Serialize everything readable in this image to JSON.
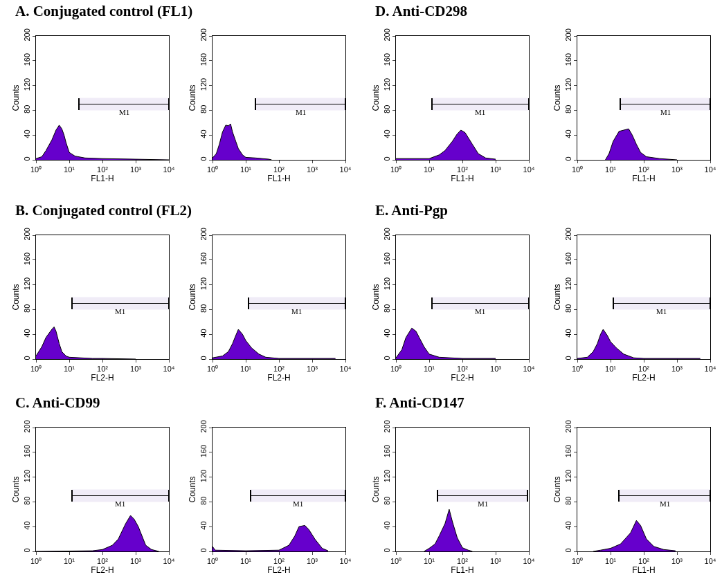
{
  "chart_data": [
    {
      "type": "area",
      "title": "A. Conjugated control (FL1)",
      "xlabel": "FL1-H",
      "ylabel": "Counts",
      "log": "x",
      "color": "#6600cc",
      "xlim": [
        1,
        10000
      ],
      "xticks": [
        {
          "value": 1,
          "label": "10⁰"
        },
        {
          "value": 10,
          "label": "10¹"
        },
        {
          "value": 100,
          "label": "10²"
        },
        {
          "value": 1000,
          "label": "10³"
        },
        {
          "value": 10000,
          "label": "10⁴"
        }
      ],
      "ylim": [
        0,
        200
      ],
      "yticks": [
        0,
        40,
        80,
        120,
        160,
        200
      ],
      "x": [
        1,
        1.5,
        2,
        3,
        4,
        5,
        6,
        7,
        8,
        10,
        15,
        30,
        100,
        1000,
        10000
      ],
      "values": [
        2,
        5,
        15,
        32,
        48,
        56,
        50,
        40,
        28,
        12,
        6,
        3,
        2,
        1,
        0
      ],
      "bands": [
        {
          "axis": "x",
          "from": 20,
          "to": 10000,
          "label": "M1"
        }
      ]
    },
    {
      "type": "area",
      "xlabel": "FL1-H",
      "ylabel": "Counts",
      "log": "x",
      "color": "#6600cc",
      "xlim": [
        1,
        10000
      ],
      "xticks": [
        {
          "value": 1,
          "label": "10⁰"
        },
        {
          "value": 10,
          "label": "10¹"
        },
        {
          "value": 100,
          "label": "10²"
        },
        {
          "value": 1000,
          "label": "10³"
        },
        {
          "value": 10000,
          "label": "10⁴"
        }
      ],
      "ylim": [
        0,
        200
      ],
      "yticks": [
        0,
        40,
        80,
        120,
        160,
        200
      ],
      "x": [
        1,
        1.3,
        1.6,
        2,
        2.5,
        3,
        3.5,
        4,
        5,
        6,
        8,
        10,
        20,
        50,
        60
      ],
      "values": [
        3,
        10,
        25,
        45,
        56,
        55,
        58,
        45,
        30,
        18,
        8,
        4,
        3,
        1,
        0
      ],
      "bands": [
        {
          "axis": "x",
          "from": 20,
          "to": 10000,
          "label": "M1"
        }
      ]
    },
    {
      "type": "area",
      "title": "D. Anti-CD298",
      "xlabel": "FL1-H",
      "ylabel": "Counts",
      "log": "x",
      "color": "#6600cc",
      "xlim": [
        1,
        10000
      ],
      "xticks": [
        {
          "value": 1,
          "label": "10⁰"
        },
        {
          "value": 10,
          "label": "10¹"
        },
        {
          "value": 100,
          "label": "10²"
        },
        {
          "value": 1000,
          "label": "10³"
        },
        {
          "value": 10000,
          "label": "10⁴"
        }
      ],
      "ylim": [
        0,
        200
      ],
      "yticks": [
        0,
        40,
        80,
        120,
        160,
        200
      ],
      "x": [
        1,
        10,
        20,
        30,
        50,
        70,
        90,
        120,
        200,
        300,
        500,
        1000
      ],
      "values": [
        2,
        2,
        8,
        15,
        30,
        42,
        48,
        44,
        25,
        10,
        3,
        1
      ],
      "bands": [
        {
          "axis": "x",
          "from": 12,
          "to": 10000,
          "label": "M1"
        }
      ]
    },
    {
      "type": "area",
      "xlabel": "FL1-H",
      "ylabel": "Counts",
      "log": "x",
      "color": "#6600cc",
      "xlim": [
        1,
        10000
      ],
      "xticks": [
        {
          "value": 1,
          "label": "10⁰"
        },
        {
          "value": 10,
          "label": "10¹"
        },
        {
          "value": 100,
          "label": "10²"
        },
        {
          "value": 1000,
          "label": "10³"
        },
        {
          "value": 10000,
          "label": "10⁴"
        }
      ],
      "ylim": [
        0,
        200
      ],
      "yticks": [
        0,
        40,
        80,
        120,
        160,
        200
      ],
      "x": [
        7,
        9,
        12,
        18,
        25,
        35,
        45,
        60,
        80,
        120,
        300,
        1000
      ],
      "values": [
        0,
        10,
        30,
        46,
        48,
        50,
        40,
        25,
        12,
        5,
        2,
        0
      ],
      "bands": [
        {
          "axis": "x",
          "from": 20,
          "to": 10000,
          "label": "M1"
        }
      ]
    },
    {
      "type": "area",
      "title": "B. Conjugated control (FL2)",
      "xlabel": "FL2-H",
      "ylabel": "Counts",
      "log": "x",
      "color": "#6600cc",
      "xlim": [
        1,
        10000
      ],
      "xticks": [
        {
          "value": 1,
          "label": "10⁰"
        },
        {
          "value": 10,
          "label": "10¹"
        },
        {
          "value": 100,
          "label": "10²"
        },
        {
          "value": 1000,
          "label": "10³"
        },
        {
          "value": 10000,
          "label": "10⁴"
        }
      ],
      "ylim": [
        0,
        200
      ],
      "yticks": [
        0,
        40,
        80,
        120,
        160,
        200
      ],
      "x": [
        1,
        1.5,
        2,
        3,
        3.5,
        4,
        5,
        6,
        8,
        10,
        50,
        100,
        1000
      ],
      "values": [
        5,
        20,
        35,
        48,
        52,
        45,
        25,
        12,
        5,
        3,
        1,
        1,
        0
      ],
      "bands": [
        {
          "axis": "x",
          "from": 12,
          "to": 10000,
          "label": "M1"
        }
      ]
    },
    {
      "type": "area",
      "xlabel": "FL2-H",
      "ylabel": "Counts",
      "log": "x",
      "color": "#6600cc",
      "xlim": [
        1,
        10000
      ],
      "xticks": [
        {
          "value": 1,
          "label": "10⁰"
        },
        {
          "value": 10,
          "label": "10¹"
        },
        {
          "value": 100,
          "label": "10²"
        },
        {
          "value": 1000,
          "label": "10³"
        },
        {
          "value": 10000,
          "label": "10⁴"
        }
      ],
      "ylim": [
        0,
        200
      ],
      "yticks": [
        0,
        40,
        80,
        120,
        160,
        200
      ],
      "x": [
        1,
        2,
        3,
        4,
        5,
        6,
        8,
        10,
        15,
        25,
        40,
        100,
        1000,
        5000
      ],
      "values": [
        2,
        5,
        12,
        25,
        38,
        48,
        40,
        30,
        18,
        8,
        3,
        1,
        1,
        1
      ],
      "bands": [
        {
          "axis": "x",
          "from": 12,
          "to": 10000,
          "label": "M1"
        }
      ]
    },
    {
      "type": "area",
      "title": "E. Anti-Pgp",
      "xlabel": "FL2-H",
      "ylabel": "Counts",
      "log": "x",
      "color": "#6600cc",
      "xlim": [
        1,
        10000
      ],
      "xticks": [
        {
          "value": 1,
          "label": "10⁰"
        },
        {
          "value": 10,
          "label": "10¹"
        },
        {
          "value": 100,
          "label": "10²"
        },
        {
          "value": 1000,
          "label": "10³"
        },
        {
          "value": 10000,
          "label": "10⁴"
        }
      ],
      "ylim": [
        0,
        200
      ],
      "yticks": [
        0,
        40,
        80,
        120,
        160,
        200
      ],
      "x": [
        1,
        1.5,
        2,
        3,
        4,
        5,
        7,
        10,
        20,
        100,
        1000
      ],
      "values": [
        2,
        15,
        35,
        50,
        45,
        35,
        20,
        8,
        3,
        1,
        1
      ],
      "bands": [
        {
          "axis": "x",
          "from": 12,
          "to": 10000,
          "label": "M1"
        }
      ]
    },
    {
      "type": "area",
      "xlabel": "FL2-H",
      "ylabel": "Counts",
      "log": "x",
      "color": "#6600cc",
      "xlim": [
        1,
        10000
      ],
      "xticks": [
        {
          "value": 1,
          "label": "10⁰"
        },
        {
          "value": 10,
          "label": "10¹"
        },
        {
          "value": 100,
          "label": "10²"
        },
        {
          "value": 1000,
          "label": "10³"
        },
        {
          "value": 10000,
          "label": "10⁴"
        }
      ],
      "ylim": [
        0,
        200
      ],
      "yticks": [
        0,
        40,
        80,
        120,
        160,
        200
      ],
      "x": [
        1,
        2,
        3,
        4,
        5,
        6,
        8,
        10,
        15,
        25,
        50,
        100,
        1000,
        5000
      ],
      "values": [
        1,
        3,
        12,
        25,
        40,
        48,
        38,
        28,
        18,
        8,
        2,
        1,
        1,
        1
      ],
      "bands": [
        {
          "axis": "x",
          "from": 12,
          "to": 10000,
          "label": "M1"
        }
      ]
    },
    {
      "type": "area",
      "title": "C. Anti-CD99",
      "xlabel": "FL2-H",
      "ylabel": "Counts",
      "log": "x",
      "color": "#6600cc",
      "xlim": [
        1,
        10000
      ],
      "xticks": [
        {
          "value": 1,
          "label": "10⁰"
        },
        {
          "value": 10,
          "label": "10¹"
        },
        {
          "value": 100,
          "label": "10²"
        },
        {
          "value": 1000,
          "label": "10³"
        },
        {
          "value": 10000,
          "label": "10⁴"
        }
      ],
      "ylim": [
        0,
        200
      ],
      "yticks": [
        0,
        40,
        80,
        120,
        160,
        200
      ],
      "x": [
        1,
        50,
        100,
        200,
        300,
        500,
        700,
        900,
        1200,
        2000,
        3000,
        5000
      ],
      "values": [
        0,
        1,
        3,
        10,
        20,
        45,
        58,
        52,
        40,
        10,
        3,
        0
      ],
      "bands": [
        {
          "axis": "x",
          "from": 12,
          "to": 10000,
          "label": "M1"
        }
      ]
    },
    {
      "type": "area",
      "xlabel": "FL2-H",
      "ylabel": "Counts",
      "log": "x",
      "color": "#6600cc",
      "xlim": [
        1,
        10000
      ],
      "xticks": [
        {
          "value": 1,
          "label": "10⁰"
        },
        {
          "value": 10,
          "label": "10¹"
        },
        {
          "value": 100,
          "label": "10²"
        },
        {
          "value": 1000,
          "label": "10³"
        },
        {
          "value": 10000,
          "label": "10⁴"
        }
      ],
      "ylim": [
        0,
        200
      ],
      "yticks": [
        0,
        40,
        80,
        120,
        160,
        200
      ],
      "x": [
        1,
        1.2,
        10,
        100,
        200,
        300,
        400,
        600,
        800,
        1200,
        2000,
        3000
      ],
      "values": [
        8,
        2,
        1,
        2,
        10,
        25,
        40,
        42,
        35,
        20,
        5,
        1
      ],
      "bands": [
        {
          "axis": "x",
          "from": 14,
          "to": 10000,
          "label": "M1"
        }
      ]
    },
    {
      "type": "area",
      "title": "F. Anti-CD147",
      "xlabel": "FL1-H",
      "ylabel": "Counts",
      "log": "x",
      "color": "#6600cc",
      "xlim": [
        1,
        10000
      ],
      "xticks": [
        {
          "value": 1,
          "label": "10⁰"
        },
        {
          "value": 10,
          "label": "10¹"
        },
        {
          "value": 100,
          "label": "10²"
        },
        {
          "value": 1000,
          "label": "10³"
        },
        {
          "value": 10000,
          "label": "10⁴"
        }
      ],
      "ylim": [
        0,
        200
      ],
      "yticks": [
        0,
        40,
        80,
        120,
        160,
        200
      ],
      "x": [
        7,
        10,
        15,
        20,
        30,
        40,
        50,
        70,
        100,
        150,
        200
      ],
      "values": [
        0,
        5,
        12,
        25,
        45,
        68,
        48,
        22,
        6,
        2,
        0
      ],
      "bands": [
        {
          "axis": "x",
          "from": 18,
          "to": 9000,
          "label": "M1"
        }
      ]
    },
    {
      "type": "area",
      "xlabel": "FL1-H",
      "ylabel": "Counts",
      "log": "x",
      "color": "#6600cc",
      "xlim": [
        1,
        10000
      ],
      "xticks": [
        {
          "value": 1,
          "label": "10⁰"
        },
        {
          "value": 10,
          "label": "10¹"
        },
        {
          "value": 100,
          "label": "10²"
        },
        {
          "value": 1000,
          "label": "10³"
        },
        {
          "value": 10000,
          "label": "10⁴"
        }
      ],
      "ylim": [
        0,
        200
      ],
      "yticks": [
        0,
        40,
        80,
        120,
        160,
        200
      ],
      "x": [
        3,
        5,
        10,
        20,
        40,
        60,
        80,
        120,
        200,
        400,
        900
      ],
      "values": [
        0,
        2,
        5,
        12,
        30,
        50,
        42,
        20,
        8,
        3,
        1
      ],
      "bands": [
        {
          "axis": "x",
          "from": 18,
          "to": 10000,
          "label": "M1"
        }
      ]
    }
  ]
}
